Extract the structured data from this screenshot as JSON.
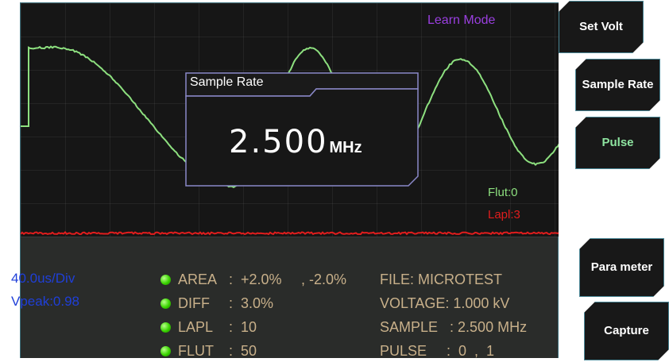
{
  "scope": {
    "mode_label": "Learn Mode",
    "flut_label": "Flut:0",
    "lapl_label": "Lapl:3",
    "trace_color": "#8de07f",
    "noise_color": "#e11d1d"
  },
  "popup": {
    "title": "Sample Rate",
    "value": "2.500",
    "unit": "MHz"
  },
  "info": {
    "timebase": "40.0us/Div",
    "vpeak": "Vpeak:0.98",
    "params": [
      {
        "label": "AREA",
        "sep": ":",
        "value": "+2.0%",
        "value2": ", -2.0%"
      },
      {
        "label": "DIFF",
        "sep": ":",
        "value": "3.0%",
        "value2": ""
      },
      {
        "label": "LAPL",
        "sep": ":",
        "value": "10",
        "value2": ""
      },
      {
        "label": "FLUT",
        "sep": ":",
        "value": "50",
        "value2": ""
      }
    ],
    "file": "FILE: MICROTEST",
    "voltage": "VOLTAGE: 1.000 kV",
    "sample": "SAMPLE   : 2.500 MHz",
    "pulse": "PULSE     :  0  ,  1"
  },
  "buttons": {
    "set_volt": "Set Volt",
    "sample_rate": "Sample Rate",
    "pulse": "Pulse",
    "parameter": "Para meter",
    "capture": "Capture"
  }
}
